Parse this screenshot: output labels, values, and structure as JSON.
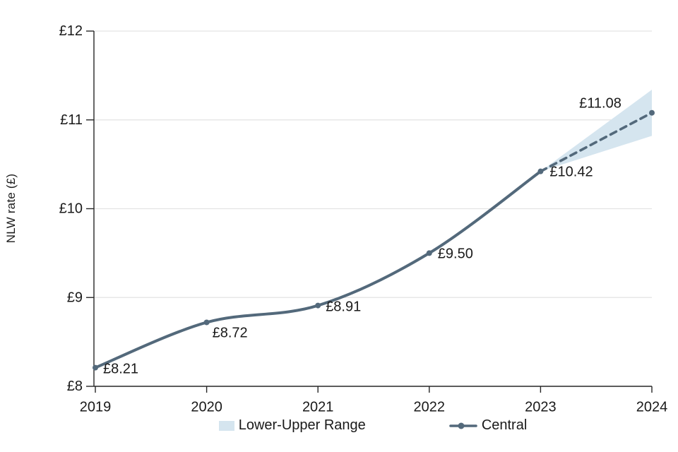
{
  "axes": {
    "y_title": "NLW rate (£)"
  },
  "legend": {
    "range_label": "Lower-Upper Range",
    "central_label": "Central"
  },
  "colors": {
    "central_line": "#53697b",
    "range_fill": "#d5e5ef",
    "gridline": "#e3e3e3",
    "axis": "#262626",
    "text": "#1a1a1a"
  },
  "chart_data": {
    "type": "line",
    "title": "",
    "xlabel": "",
    "ylabel": "NLW rate (£)",
    "x": [
      2019,
      2020,
      2021,
      2022,
      2023,
      2024
    ],
    "x_tick_labels": [
      "2019",
      "2020",
      "2021",
      "2022",
      "2023",
      "2024"
    ],
    "y_ticks": [
      8,
      9,
      10,
      11,
      12
    ],
    "y_tick_labels": [
      "£8",
      "£9",
      "£10",
      "£11",
      "£12"
    ],
    "ylim": [
      8,
      12
    ],
    "grid": "horizontal-only",
    "legend_position": "bottom",
    "series": [
      {
        "name": "Central",
        "type": "line",
        "values": [
          8.21,
          8.72,
          8.91,
          9.5,
          10.42,
          11.08
        ],
        "point_labels": [
          "£8.21",
          "£8.72",
          "£8.91",
          "£9.50",
          "£10.42",
          "£11.08"
        ],
        "solid_until_x": 2023,
        "dashed_after_x": 2023,
        "markers": true
      },
      {
        "name": "Lower-Upper Range",
        "type": "band",
        "x": [
          2023,
          2024
        ],
        "lower": [
          10.42,
          10.82
        ],
        "upper": [
          10.42,
          11.34
        ],
        "note": "fan range shown only for projection segment 2023-2024; bounds estimated from pixels"
      }
    ]
  }
}
